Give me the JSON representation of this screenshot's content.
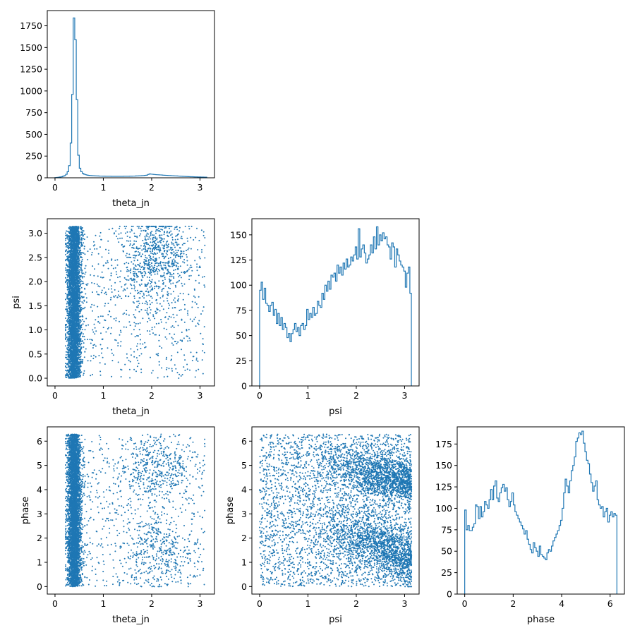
{
  "figure": {
    "background": "#ffffff",
    "series_color": "#1f77b4"
  },
  "chart_data": [
    {
      "id": "hist-theta-jn",
      "type": "histogram",
      "xlabel": "theta_jn",
      "ylabel": "",
      "xlim": [
        -0.16,
        3.3
      ],
      "ylim": [
        0,
        1925
      ],
      "xticks": [
        0,
        1,
        2,
        3
      ],
      "yticks": [
        0,
        250,
        500,
        750,
        1000,
        1250,
        1500,
        1750
      ],
      "bin_edges_range": [
        0,
        3.14
      ],
      "bins": 100,
      "counts": [
        2,
        4,
        6,
        9,
        12,
        18,
        25,
        40,
        70,
        140,
        400,
        960,
        1840,
        1590,
        900,
        260,
        110,
        70,
        50,
        40,
        35,
        30,
        28,
        26,
        25,
        24,
        23,
        22,
        21,
        20,
        20,
        19,
        19,
        18,
        18,
        18,
        18,
        17,
        17,
        17,
        17,
        17,
        17,
        17,
        17,
        18,
        18,
        18,
        18,
        19,
        19,
        20,
        20,
        21,
        22,
        23,
        24,
        25,
        26,
        28,
        30,
        38,
        45,
        42,
        40,
        38,
        36,
        35,
        34,
        33,
        32,
        30,
        29,
        28,
        27,
        26,
        25,
        24,
        23,
        22,
        21,
        20,
        19,
        18,
        17,
        16,
        15,
        14,
        13,
        12,
        12,
        11,
        10,
        10,
        9,
        9,
        8,
        8,
        7,
        7
      ]
    },
    {
      "id": "scatter-theta-psi",
      "type": "scatter",
      "xlabel": "theta_jn",
      "ylabel": "psi",
      "xlim": [
        -0.16,
        3.3
      ],
      "ylim": [
        -0.16,
        3.3
      ],
      "xticks": [
        0,
        1,
        2,
        3
      ],
      "yticks": [
        0.0,
        0.5,
        1.0,
        1.5,
        2.0,
        2.5,
        3.0
      ],
      "ytick_labels": [
        "0.0",
        "0.5",
        "1.0",
        "1.5",
        "2.0",
        "2.5",
        "3.0"
      ],
      "n_points": 6000,
      "point_size": 1.8,
      "description": "dense vertical band at theta_jn 0.25-0.55 spanning full psi range; sparse points elsewhere with a denser cloud around theta_jn 1.8-2.6, psi 1.8-3.1"
    },
    {
      "id": "hist-psi",
      "type": "histogram",
      "xlabel": "psi",
      "ylabel": "",
      "xlim": [
        -0.16,
        3.3
      ],
      "ylim": [
        0,
        166
      ],
      "xticks": [
        0,
        1,
        2,
        3
      ],
      "yticks": [
        0,
        25,
        50,
        75,
        100,
        125,
        150
      ],
      "bin_edges_range": [
        0,
        3.14
      ],
      "bins": 100,
      "counts": [
        95,
        103,
        86,
        97,
        82,
        80,
        74,
        80,
        83,
        70,
        76,
        62,
        72,
        60,
        68,
        56,
        62,
        58,
        48,
        52,
        44,
        52,
        56,
        62,
        54,
        58,
        50,
        60,
        62,
        56,
        60,
        76,
        66,
        72,
        68,
        78,
        70,
        72,
        84,
        80,
        78,
        92,
        86,
        100,
        94,
        104,
        96,
        110,
        108,
        112,
        104,
        120,
        112,
        118,
        110,
        122,
        116,
        126,
        118,
        120,
        128,
        124,
        130,
        138,
        126,
        156,
        128,
        136,
        140,
        132,
        122,
        126,
        130,
        140,
        132,
        148,
        136,
        158,
        140,
        150,
        144,
        152,
        146,
        148,
        140,
        138,
        126,
        142,
        138,
        118,
        136,
        130,
        124,
        120,
        118,
        114,
        98,
        112,
        118,
        92
      ]
    },
    {
      "id": "scatter-theta-phase",
      "type": "scatter",
      "xlabel": "theta_jn",
      "ylabel": "phase",
      "xlim": [
        -0.16,
        3.3
      ],
      "ylim": [
        -0.31,
        6.59
      ],
      "xticks": [
        0,
        1,
        2,
        3
      ],
      "yticks": [
        0,
        1,
        2,
        3,
        4,
        5,
        6
      ],
      "n_points": 6000,
      "point_size": 1.8,
      "description": "dense vertical band at theta_jn 0.25-0.55 over full phase range; sparse elsewhere with clusters near phase 4.8 and 1.5"
    },
    {
      "id": "scatter-psi-phase",
      "type": "scatter",
      "xlabel": "psi",
      "ylabel": "phase",
      "xlim": [
        -0.16,
        3.3
      ],
      "ylim": [
        -0.31,
        6.59
      ],
      "xticks": [
        0,
        1,
        2,
        3
      ],
      "yticks": [
        0,
        1,
        2,
        3,
        4,
        5,
        6
      ],
      "n_points": 6000,
      "point_size": 1.8,
      "description": "roughly uniform fill with two diagonal denser bands descending from psi 1.2 to 3.1 (phase ~5.2->4.3 and ~2.8->1.2)"
    },
    {
      "id": "hist-phase",
      "type": "histogram",
      "xlabel": "phase",
      "ylabel": "",
      "xlim": [
        -0.31,
        6.59
      ],
      "ylim": [
        0,
        195
      ],
      "xticks": [
        0,
        2,
        4,
        6
      ],
      "yticks": [
        0,
        25,
        50,
        75,
        100,
        125,
        150,
        175
      ],
      "bin_edges_range": [
        0,
        6.28
      ],
      "bins": 100,
      "counts": [
        98,
        75,
        80,
        74,
        74,
        78,
        82,
        104,
        102,
        88,
        102,
        90,
        96,
        108,
        104,
        100,
        110,
        122,
        110,
        126,
        132,
        112,
        108,
        118,
        124,
        128,
        120,
        124,
        110,
        102,
        108,
        118,
        104,
        96,
        92,
        88,
        84,
        80,
        76,
        70,
        74,
        64,
        58,
        52,
        48,
        60,
        54,
        50,
        44,
        56,
        46,
        44,
        42,
        40,
        48,
        52,
        50,
        56,
        62,
        66,
        70,
        74,
        80,
        86,
        100,
        118,
        134,
        126,
        118,
        132,
        144,
        150,
        160,
        178,
        182,
        188,
        186,
        190,
        176,
        166,
        156,
        152,
        140,
        130,
        120,
        126,
        132,
        110,
        104,
        100,
        102,
        90,
        96,
        100,
        84,
        92,
        96,
        90,
        94,
        92
      ]
    }
  ]
}
